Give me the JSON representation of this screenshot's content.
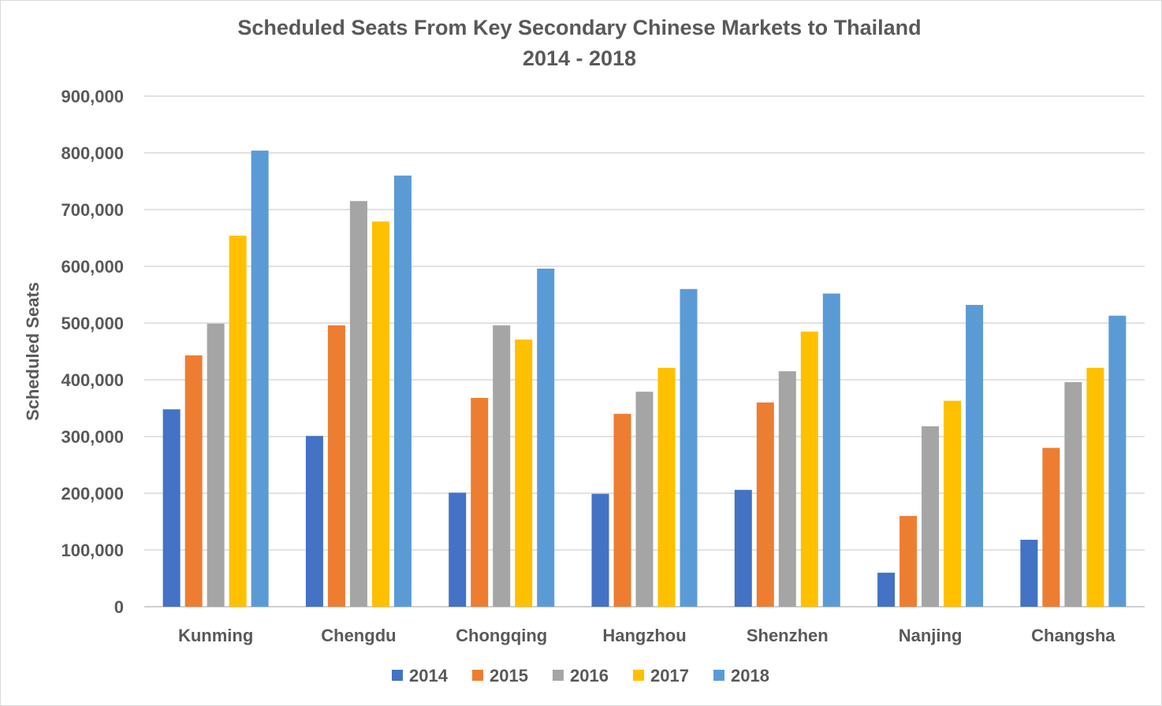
{
  "chart_data": {
    "type": "bar",
    "title": "Scheduled Seats From Key Secondary Chinese Markets to Thailand",
    "subtitle": "2014 - 2018",
    "xlabel": "",
    "ylabel": "Scheduled Seats",
    "ylim": [
      0,
      900000
    ],
    "yticks": [
      0,
      100000,
      200000,
      300000,
      400000,
      500000,
      600000,
      700000,
      800000,
      900000
    ],
    "ytick_labels": [
      "0",
      "100,000",
      "200,000",
      "300,000",
      "400,000",
      "500,000",
      "600,000",
      "700,000",
      "800,000",
      "900,000"
    ],
    "grid": true,
    "legend_position": "bottom",
    "categories": [
      "Kunming",
      "Chengdu",
      "Chongqing",
      "Hangzhou",
      "Shenzhen",
      "Nanjing",
      "Changsha"
    ],
    "series": [
      {
        "name": "2014",
        "color": "#4472C4",
        "values": [
          348000,
          301000,
          201000,
          199000,
          206000,
          60000,
          118000
        ]
      },
      {
        "name": "2015",
        "color": "#ED7D31",
        "values": [
          443000,
          496000,
          368000,
          340000,
          360000,
          160000,
          280000
        ]
      },
      {
        "name": "2016",
        "color": "#A5A5A5",
        "values": [
          499000,
          715000,
          496000,
          379000,
          415000,
          318000,
          396000
        ]
      },
      {
        "name": "2017",
        "color": "#FFC000",
        "values": [
          654000,
          679000,
          471000,
          421000,
          485000,
          363000,
          421000
        ]
      },
      {
        "name": "2018",
        "color": "#5B9BD5",
        "values": [
          804000,
          760000,
          596000,
          560000,
          552000,
          532000,
          513000
        ]
      }
    ]
  }
}
